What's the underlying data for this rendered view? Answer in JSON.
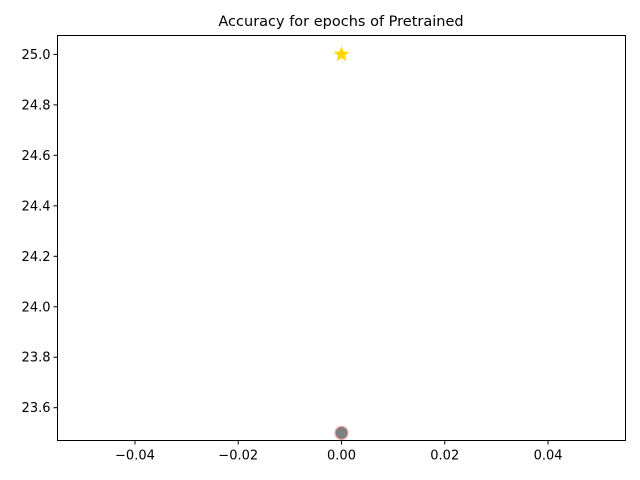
{
  "chart_data": {
    "type": "scatter",
    "title": "Accuracy for epochs of Pretrained",
    "xlabel": "",
    "ylabel": "",
    "xlim": [
      -0.055,
      0.055
    ],
    "ylim": [
      23.47,
      25.075
    ],
    "x_ticks": [
      -0.04,
      -0.02,
      0.0,
      0.02,
      0.04
    ],
    "x_tick_labels": [
      "−0.04",
      "−0.02",
      "0.00",
      "0.02",
      "0.04"
    ],
    "y_ticks": [
      23.6,
      23.8,
      24.0,
      24.2,
      24.4,
      24.6,
      24.8,
      25.0
    ],
    "y_tick_labels": [
      "23.6",
      "23.8",
      "24.0",
      "24.2",
      "24.4",
      "24.6",
      "24.8",
      "25.0"
    ],
    "grid": false,
    "legend": "none",
    "series": [
      {
        "marker": "circle",
        "color": "#808080",
        "edge_color": "#f4a6a6",
        "points": [
          {
            "x": 0.0,
            "y": 23.5
          }
        ]
      },
      {
        "marker": "star",
        "color": "#ffd700",
        "edge_color": "#ffd700",
        "points": [
          {
            "x": 0.0,
            "y": 25.0
          }
        ]
      }
    ]
  }
}
